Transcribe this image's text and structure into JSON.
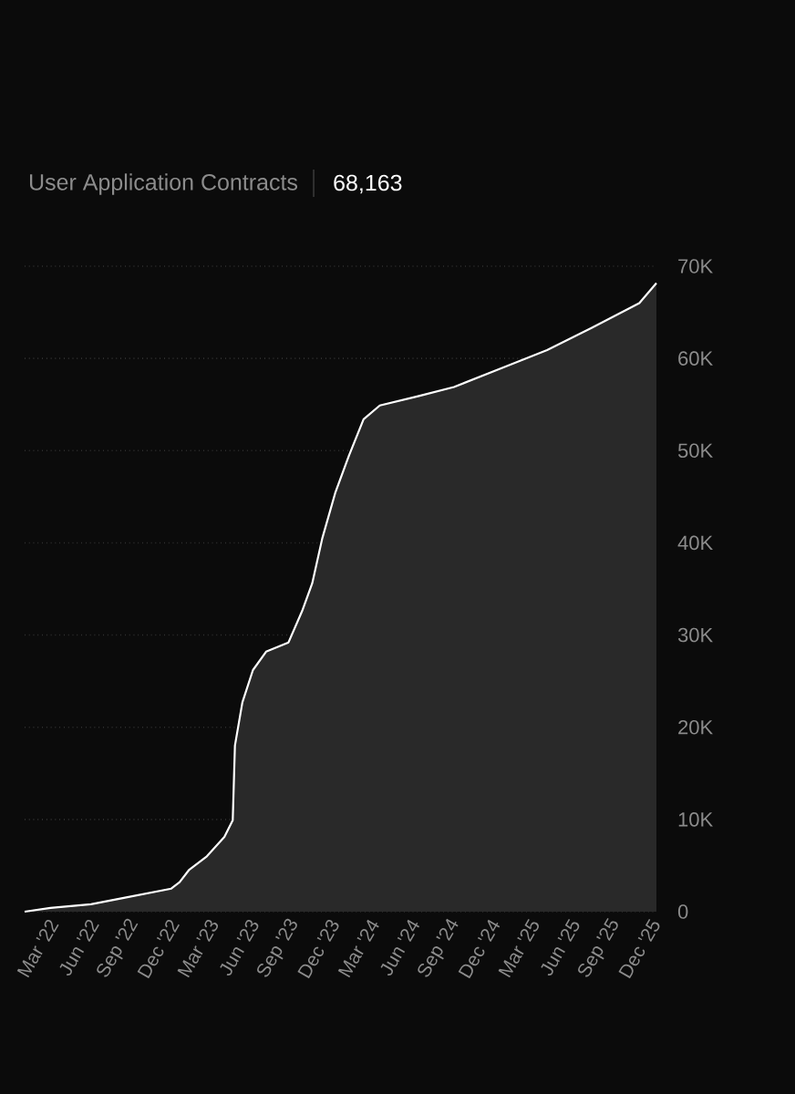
{
  "chart_data": {
    "type": "area",
    "title": "User Application Contracts",
    "subtitle": "68,163",
    "x": [
      "2022-01-01",
      "2022-03-01",
      "2022-06-01",
      "2022-08-15",
      "2022-12-01",
      "2022-12-20",
      "2023-01-10",
      "2023-02-20",
      "2023-04-01",
      "2023-04-20",
      "2023-04-25",
      "2023-05-12",
      "2023-06-05",
      "2023-07-05",
      "2023-08-25",
      "2023-09-25",
      "2023-10-18",
      "2023-11-10",
      "2023-12-10",
      "2024-01-10",
      "2024-02-12",
      "2024-03-20",
      "2024-06-15",
      "2024-09-05",
      "2024-12-20",
      "2025-04-05",
      "2025-07-15",
      "2025-11-01",
      "2025-12-10"
    ],
    "series": [
      {
        "color": "#ffffff",
        "values": [
          0,
          400,
          800,
          1500,
          2500,
          3200,
          4500,
          6000,
          8100,
          9900,
          18000,
          22700,
          26200,
          28200,
          29200,
          32600,
          35600,
          40500,
          45500,
          49500,
          53400,
          54900,
          55900,
          56900,
          58900,
          60900,
          63300,
          66000,
          68163
        ]
      }
    ],
    "xlim": [
      "2022-01-01",
      "2025-12-10"
    ],
    "xticks": [
      {
        "value": "2022-03-01",
        "label": "Mar '22"
      },
      {
        "value": "2022-06-01",
        "label": "Jun '22"
      },
      {
        "value": "2022-09-01",
        "label": "Sep '22"
      },
      {
        "value": "2022-12-01",
        "label": "Dec '22"
      },
      {
        "value": "2023-03-01",
        "label": "Mar '23"
      },
      {
        "value": "2023-06-01",
        "label": "Jun '23"
      },
      {
        "value": "2023-09-01",
        "label": "Sep '23"
      },
      {
        "value": "2023-12-01",
        "label": "Dec '23"
      },
      {
        "value": "2024-03-01",
        "label": "Mar '24"
      },
      {
        "value": "2024-06-01",
        "label": "Jun '24"
      },
      {
        "value": "2024-09-01",
        "label": "Sep '24"
      },
      {
        "value": "2024-12-01",
        "label": "Dec '24"
      },
      {
        "value": "2025-03-01",
        "label": "Mar '25"
      },
      {
        "value": "2025-06-01",
        "label": "Jun '25"
      },
      {
        "value": "2025-09-01",
        "label": "Sep '25"
      },
      {
        "value": "2025-12-01",
        "label": "Dec '25"
      }
    ],
    "ylim": [
      0,
      70000
    ],
    "yticks": [
      {
        "value": 0,
        "label": "0"
      },
      {
        "value": 10000,
        "label": "10K"
      },
      {
        "value": 20000,
        "label": "20K"
      },
      {
        "value": 30000,
        "label": "30K"
      },
      {
        "value": 40000,
        "label": "40K"
      },
      {
        "value": 50000,
        "label": "50K"
      },
      {
        "value": 60000,
        "label": "60K"
      },
      {
        "value": 70000,
        "label": "70K"
      }
    ],
    "grid": "y"
  }
}
